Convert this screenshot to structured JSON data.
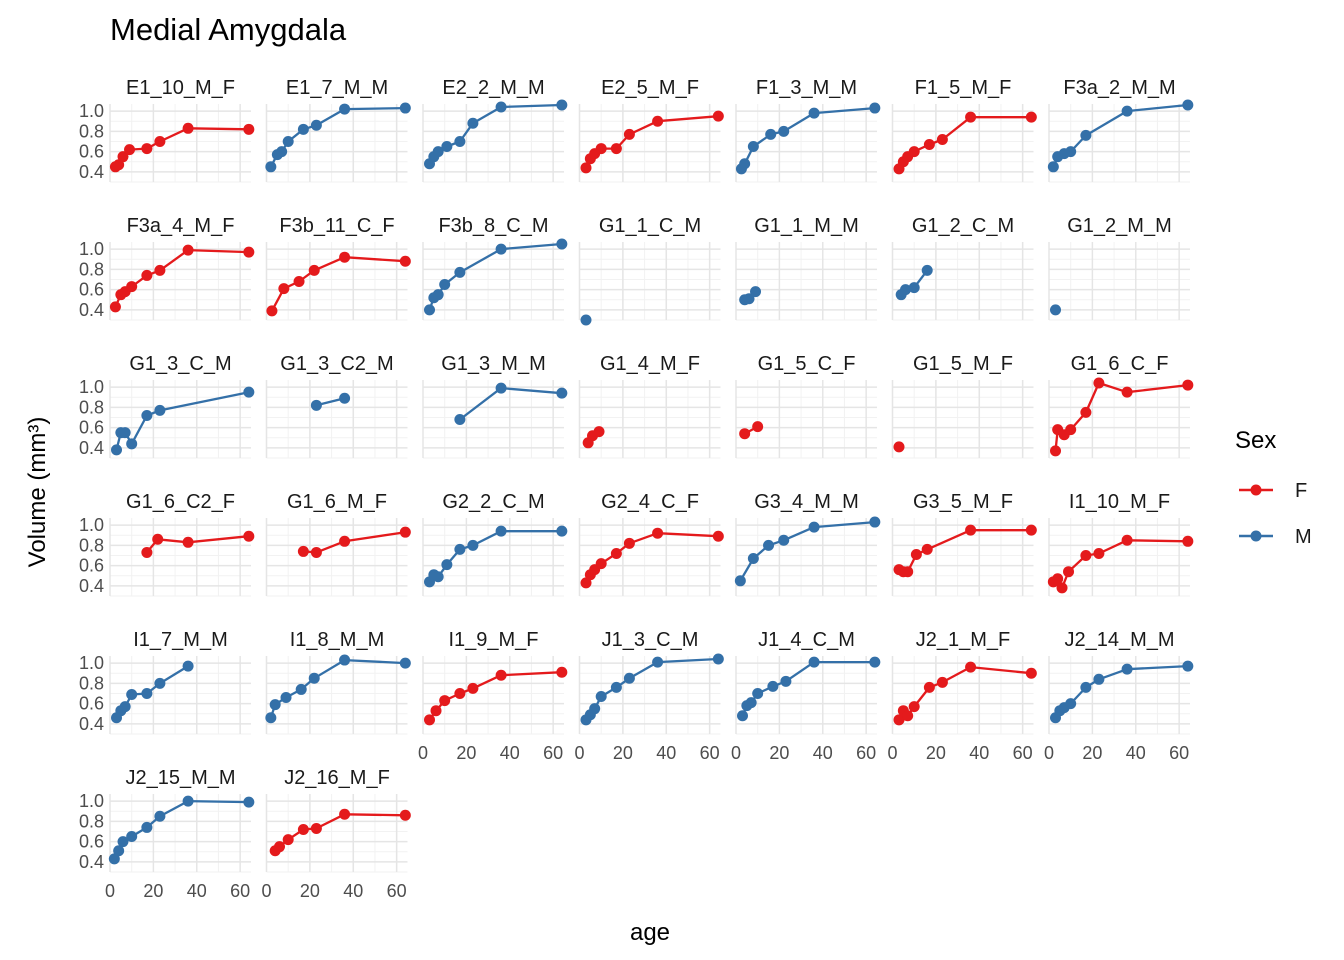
{
  "chart_data": {
    "type": "line",
    "title": "Medial Amygdala",
    "xlabel": "age",
    "ylabel": "Volume (mm³)",
    "xlim": [
      0,
      65
    ],
    "ylim": [
      0.3,
      1.07
    ],
    "xticks": [
      0,
      20,
      40,
      60
    ],
    "yticks": [
      0.4,
      0.6,
      0.8,
      1.0
    ],
    "ytick_labels": [
      "0.4",
      "0.6",
      "0.8",
      "1.0"
    ],
    "grid": true,
    "legend": {
      "title": "Sex",
      "position": "right",
      "entries": [
        {
          "label": "F",
          "color": "#E41A1C"
        },
        {
          "label": "M",
          "color": "#3470A8"
        }
      ]
    },
    "colors": {
      "F": "#E41A1C",
      "M": "#3470A8"
    },
    "facets": [
      {
        "name": "E1_10_M_F",
        "sex": "F",
        "points": [
          [
            2.5,
            0.45
          ],
          [
            4,
            0.47
          ],
          [
            6,
            0.55
          ],
          [
            9,
            0.62
          ],
          [
            17,
            0.63
          ],
          [
            23,
            0.7
          ],
          [
            36,
            0.83
          ],
          [
            64,
            0.82
          ]
        ]
      },
      {
        "name": "E1_7_M_M",
        "sex": "M",
        "points": [
          [
            2,
            0.45
          ],
          [
            5,
            0.57
          ],
          [
            7,
            0.6
          ],
          [
            10,
            0.7
          ],
          [
            17,
            0.82
          ],
          [
            23,
            0.86
          ],
          [
            36,
            1.02
          ],
          [
            64,
            1.03
          ]
        ]
      },
      {
        "name": "E2_2_M_M",
        "sex": "M",
        "points": [
          [
            3,
            0.48
          ],
          [
            5,
            0.55
          ],
          [
            7,
            0.6
          ],
          [
            11,
            0.65
          ],
          [
            17,
            0.7
          ],
          [
            23,
            0.88
          ],
          [
            36,
            1.04
          ],
          [
            64,
            1.06
          ]
        ]
      },
      {
        "name": "E2_5_M_F",
        "sex": "F",
        "points": [
          [
            3,
            0.44
          ],
          [
            5,
            0.53
          ],
          [
            7,
            0.58
          ],
          [
            10,
            0.63
          ],
          [
            17,
            0.63
          ],
          [
            23,
            0.77
          ],
          [
            36,
            0.9
          ],
          [
            64,
            0.95
          ]
        ]
      },
      {
        "name": "F1_3_M_M",
        "sex": "M",
        "points": [
          [
            2.5,
            0.43
          ],
          [
            4,
            0.48
          ],
          [
            8,
            0.65
          ],
          [
            16,
            0.77
          ],
          [
            22,
            0.8
          ],
          [
            36,
            0.98
          ],
          [
            64,
            1.03
          ]
        ]
      },
      {
        "name": "F1_5_M_F",
        "sex": "F",
        "points": [
          [
            3,
            0.43
          ],
          [
            5,
            0.5
          ],
          [
            7,
            0.55
          ],
          [
            10,
            0.6
          ],
          [
            17,
            0.67
          ],
          [
            23,
            0.72
          ],
          [
            36,
            0.94
          ],
          [
            64,
            0.94
          ]
        ]
      },
      {
        "name": "F3a_2_M_M",
        "sex": "M",
        "points": [
          [
            2,
            0.45
          ],
          [
            4,
            0.55
          ],
          [
            7,
            0.58
          ],
          [
            10,
            0.6
          ],
          [
            17,
            0.76
          ],
          [
            36,
            1.0
          ],
          [
            64,
            1.06
          ]
        ]
      },
      {
        "name": "F3a_4_M_F",
        "sex": "F",
        "points": [
          [
            2.5,
            0.43
          ],
          [
            5,
            0.55
          ],
          [
            7,
            0.58
          ],
          [
            10,
            0.63
          ],
          [
            17,
            0.74
          ],
          [
            23,
            0.79
          ],
          [
            36,
            0.99
          ],
          [
            64,
            0.97
          ]
        ]
      },
      {
        "name": "F3b_11_C_F",
        "sex": "F",
        "points": [
          [
            2.5,
            0.39
          ],
          [
            8,
            0.61
          ],
          [
            15,
            0.68
          ],
          [
            22,
            0.79
          ],
          [
            36,
            0.92
          ],
          [
            64,
            0.88
          ]
        ]
      },
      {
        "name": "F3b_8_C_M",
        "sex": "M",
        "points": [
          [
            3,
            0.4
          ],
          [
            5,
            0.52
          ],
          [
            7,
            0.55
          ],
          [
            10,
            0.65
          ],
          [
            17,
            0.77
          ],
          [
            36,
            1.0
          ],
          [
            64,
            1.05
          ]
        ]
      },
      {
        "name": "G1_1_C_M",
        "sex": "M",
        "points": [
          [
            3,
            0.3
          ]
        ]
      },
      {
        "name": "G1_1_M_M",
        "sex": "M",
        "points": [
          [
            4,
            0.5
          ],
          [
            6,
            0.51
          ],
          [
            9,
            0.58
          ]
        ]
      },
      {
        "name": "G1_2_C_M",
        "sex": "M",
        "points": [
          [
            4,
            0.55
          ],
          [
            6,
            0.6
          ],
          [
            10,
            0.62
          ],
          [
            16,
            0.79
          ]
        ]
      },
      {
        "name": "G1_2_M_M",
        "sex": "M",
        "points": [
          [
            3,
            0.4
          ]
        ]
      },
      {
        "name": "G1_3_C_M",
        "sex": "M",
        "points": [
          [
            3,
            0.38
          ],
          [
            5,
            0.55
          ],
          [
            7,
            0.55
          ],
          [
            10,
            0.44
          ],
          [
            17,
            0.72
          ],
          [
            23,
            0.77
          ],
          [
            64,
            0.95
          ]
        ]
      },
      {
        "name": "G1_3_C2_M",
        "sex": "M",
        "points": [
          [
            23,
            0.82
          ],
          [
            36,
            0.89
          ]
        ]
      },
      {
        "name": "G1_3_M_M",
        "sex": "M",
        "points": [
          [
            17,
            0.68
          ],
          [
            36,
            0.99
          ],
          [
            64,
            0.94
          ]
        ]
      },
      {
        "name": "G1_4_M_F",
        "sex": "F",
        "points": [
          [
            4,
            0.45
          ],
          [
            6,
            0.52
          ],
          [
            9,
            0.56
          ]
        ]
      },
      {
        "name": "G1_5_C_F",
        "sex": "F",
        "points": [
          [
            4,
            0.54
          ],
          [
            10,
            0.61
          ]
        ]
      },
      {
        "name": "G1_5_M_F",
        "sex": "F",
        "points": [
          [
            3,
            0.41
          ]
        ]
      },
      {
        "name": "G1_6_C_F",
        "sex": "F",
        "points": [
          [
            3,
            0.37
          ],
          [
            4,
            0.58
          ],
          [
            7,
            0.53
          ],
          [
            10,
            0.58
          ],
          [
            17,
            0.75
          ],
          [
            23,
            1.04
          ],
          [
            36,
            0.95
          ],
          [
            64,
            1.02
          ]
        ]
      },
      {
        "name": "G1_6_C2_F",
        "sex": "F",
        "points": [
          [
            17,
            0.73
          ],
          [
            22,
            0.86
          ],
          [
            36,
            0.83
          ],
          [
            64,
            0.89
          ]
        ]
      },
      {
        "name": "G1_6_M_F",
        "sex": "F",
        "points": [
          [
            17,
            0.74
          ],
          [
            23,
            0.73
          ],
          [
            36,
            0.84
          ],
          [
            64,
            0.93
          ]
        ]
      },
      {
        "name": "G2_2_C_M",
        "sex": "M",
        "points": [
          [
            3,
            0.44
          ],
          [
            5,
            0.51
          ],
          [
            7,
            0.49
          ],
          [
            11,
            0.61
          ],
          [
            17,
            0.76
          ],
          [
            23,
            0.8
          ],
          [
            36,
            0.94
          ],
          [
            64,
            0.94
          ]
        ]
      },
      {
        "name": "G2_4_C_F",
        "sex": "F",
        "points": [
          [
            3,
            0.43
          ],
          [
            5,
            0.51
          ],
          [
            7,
            0.56
          ],
          [
            10,
            0.62
          ],
          [
            17,
            0.72
          ],
          [
            23,
            0.82
          ],
          [
            36,
            0.92
          ],
          [
            64,
            0.89
          ]
        ]
      },
      {
        "name": "G3_4_M_M",
        "sex": "M",
        "points": [
          [
            2,
            0.45
          ],
          [
            8,
            0.67
          ],
          [
            15,
            0.8
          ],
          [
            22,
            0.85
          ],
          [
            36,
            0.98
          ],
          [
            64,
            1.03
          ]
        ]
      },
      {
        "name": "G3_5_M_F",
        "sex": "F",
        "points": [
          [
            3,
            0.56
          ],
          [
            5,
            0.54
          ],
          [
            7,
            0.54
          ],
          [
            11,
            0.71
          ],
          [
            16,
            0.76
          ],
          [
            36,
            0.95
          ],
          [
            64,
            0.95
          ]
        ]
      },
      {
        "name": "I1_10_M_F",
        "sex": "F",
        "points": [
          [
            2,
            0.44
          ],
          [
            4,
            0.47
          ],
          [
            6,
            0.38
          ],
          [
            9,
            0.54
          ],
          [
            17,
            0.7
          ],
          [
            23,
            0.72
          ],
          [
            36,
            0.85
          ],
          [
            64,
            0.84
          ]
        ]
      },
      {
        "name": "I1_7_M_M",
        "sex": "M",
        "points": [
          [
            3,
            0.46
          ],
          [
            5,
            0.53
          ],
          [
            7,
            0.57
          ],
          [
            10,
            0.69
          ],
          [
            17,
            0.7
          ],
          [
            23,
            0.8
          ],
          [
            36,
            0.97
          ]
        ]
      },
      {
        "name": "I1_8_M_M",
        "sex": "M",
        "points": [
          [
            2,
            0.46
          ],
          [
            4,
            0.59
          ],
          [
            9,
            0.66
          ],
          [
            16,
            0.74
          ],
          [
            22,
            0.85
          ],
          [
            36,
            1.03
          ],
          [
            64,
            1.0
          ]
        ]
      },
      {
        "name": "I1_9_M_F",
        "sex": "F",
        "points": [
          [
            3,
            0.44
          ],
          [
            6,
            0.53
          ],
          [
            10,
            0.63
          ],
          [
            17,
            0.7
          ],
          [
            23,
            0.75
          ],
          [
            36,
            0.88
          ],
          [
            64,
            0.91
          ]
        ]
      },
      {
        "name": "J1_3_C_M",
        "sex": "M",
        "points": [
          [
            3,
            0.44
          ],
          [
            5,
            0.49
          ],
          [
            7,
            0.55
          ],
          [
            10,
            0.67
          ],
          [
            17,
            0.76
          ],
          [
            23,
            0.85
          ],
          [
            36,
            1.01
          ],
          [
            64,
            1.04
          ]
        ]
      },
      {
        "name": "J1_4_C_M",
        "sex": "M",
        "points": [
          [
            3,
            0.48
          ],
          [
            5,
            0.58
          ],
          [
            7,
            0.61
          ],
          [
            10,
            0.7
          ],
          [
            17,
            0.77
          ],
          [
            23,
            0.82
          ],
          [
            36,
            1.01
          ],
          [
            64,
            1.01
          ]
        ]
      },
      {
        "name": "J2_1_M_F",
        "sex": "F",
        "points": [
          [
            3,
            0.44
          ],
          [
            5,
            0.53
          ],
          [
            7,
            0.48
          ],
          [
            10,
            0.57
          ],
          [
            17,
            0.76
          ],
          [
            23,
            0.81
          ],
          [
            36,
            0.96
          ],
          [
            64,
            0.9
          ]
        ]
      },
      {
        "name": "J2_14_M_M",
        "sex": "M",
        "points": [
          [
            3,
            0.46
          ],
          [
            5,
            0.53
          ],
          [
            7,
            0.56
          ],
          [
            10,
            0.6
          ],
          [
            17,
            0.76
          ],
          [
            23,
            0.84
          ],
          [
            36,
            0.94
          ],
          [
            64,
            0.97
          ]
        ]
      },
      {
        "name": "J2_15_M_M",
        "sex": "M",
        "points": [
          [
            2,
            0.43
          ],
          [
            4,
            0.51
          ],
          [
            6,
            0.6
          ],
          [
            10,
            0.65
          ],
          [
            17,
            0.74
          ],
          [
            23,
            0.85
          ],
          [
            36,
            1.0
          ],
          [
            64,
            0.99
          ]
        ]
      },
      {
        "name": "J2_16_M_F",
        "sex": "F",
        "points": [
          [
            4,
            0.51
          ],
          [
            6,
            0.55
          ],
          [
            10,
            0.62
          ],
          [
            17,
            0.72
          ],
          [
            23,
            0.73
          ],
          [
            36,
            0.87
          ],
          [
            64,
            0.86
          ]
        ]
      }
    ]
  }
}
